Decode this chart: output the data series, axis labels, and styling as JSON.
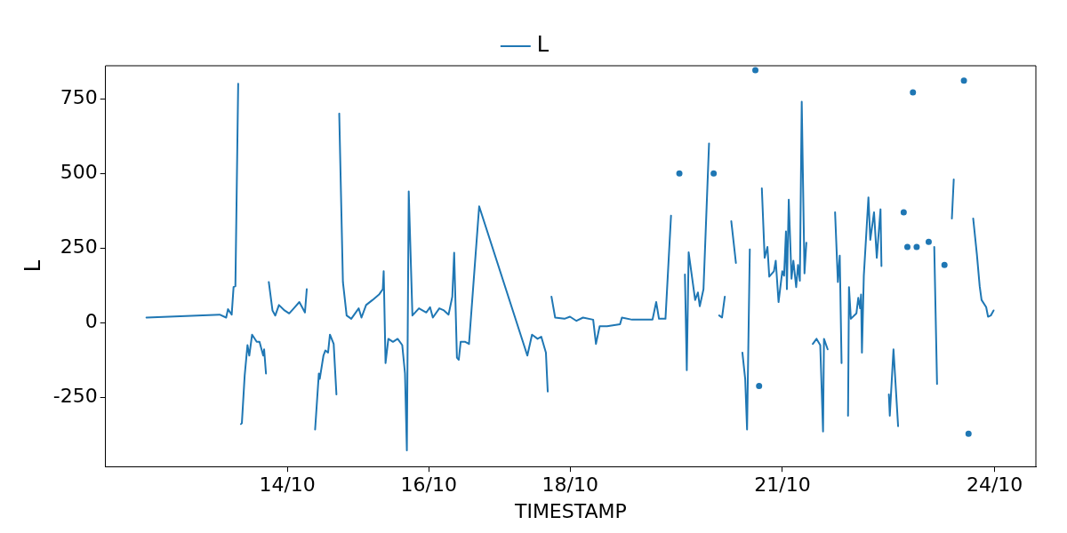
{
  "chart_data": {
    "type": "line",
    "xlabel": "TIMESTAMP",
    "ylabel": "L",
    "legend": "top",
    "marker": "none",
    "line_style": "solid",
    "xlim": [
      "--10-11T10:20",
      "--10-24T14:00"
    ],
    "xticks": [
      {
        "value": "--10-14",
        "label": "14/10"
      },
      {
        "value": "--10-16",
        "label": "16/10"
      },
      {
        "value": "--10-18",
        "label": "18/10"
      },
      {
        "value": "--10-21",
        "label": "21/10"
      },
      {
        "value": "--10-24",
        "label": "24/10"
      }
    ],
    "ylim": [
      -480,
      860
    ],
    "yticks": [
      -250,
      0,
      250,
      500,
      750
    ],
    "series": [
      {
        "name": "L",
        "color": "#1f77b4",
        "x": [
          "--10-12T00:12",
          "--10-13T01:02",
          "--10-13T03:15",
          "--10-13T03:52",
          "--10-13T05:08",
          "--10-13T05:46",
          "--10-13T06:23",
          "--10-13T07:20",
          "--10-13T07:39",
          "--10-13T08:16",
          "--10-13T08:35",
          "--10-13T09:32",
          "--10-13T10:29",
          "--10-13T11:06",
          "--10-13T12:03",
          "--10-13T13:37",
          "--10-13T14:34",
          "--10-13T15:49",
          "--10-13T16:08",
          "--10-13T16:46",
          "--10-13T17:05",
          "--10-13T17:43",
          "--10-13T18:58",
          "--10-13T19:55",
          "--10-13T21:10",
          "--10-13T23:03",
          "--10-14T00:38",
          "--10-14T02:12",
          "--10-14T04:05",
          "--10-14T05:59",
          "--10-14T06:36",
          "--10-14T07:14",
          "--10-14T07:33",
          "--10-14T09:26",
          "--10-14T10:42",
          "--10-14T11:00",
          "--10-14T12:16",
          "--10-14T12:54",
          "--10-14T13:50",
          "--10-14T14:28",
          "--10-14T15:44",
          "--10-14T16:40",
          "--10-14T16:59",
          "--10-14T17:37",
          "--10-14T18:52",
          "--10-14T20:08",
          "--10-14T21:42",
          "--10-15T00:13",
          "--10-15T01:10",
          "--10-15T02:44",
          "--10-15T04:56",
          "--10-15T07:08",
          "--10-15T08:24",
          "--10-15T08:42",
          "--10-15T09:20",
          "--10-15T10:17",
          "--10-15T11:51",
          "--10-15T13:26",
          "--10-15T15:00",
          "--10-15T15:56",
          "--10-15T16:34",
          "--10-15T17:12",
          "--10-15T18:27",
          "--10-15T20:40",
          "--10-15T23:11",
          "--10-16T00:26",
          "--10-16T01:23",
          "--10-16T03:35",
          "--10-16T05:09",
          "--10-16T06:43",
          "--10-16T07:59",
          "--10-16T08:37",
          "--10-16T09:33",
          "--10-16T10:11",
          "--10-16T10:49",
          "--10-16T12:23",
          "--10-16T13:39",
          "--10-16T17:06",
          "--10-17T09:27",
          "--10-17T11:02",
          "--10-17T12:55",
          "--10-17T14:10",
          "--10-17T15:45",
          "--10-17T16:22",
          "--10-17T17:19",
          "--10-17T17:38",
          "--10-17T18:53",
          "--10-17T22:02",
          "--10-17T23:55",
          "--10-18T02:07",
          "--10-18T04:20",
          "--10-18T07:47",
          "--10-18T08:44",
          "--10-18T09:59",
          "--10-18T12:30",
          "--10-18T16:54",
          "--10-18T17:32",
          "--10-18T21:00",
          "--10-19T03:55",
          "--10-19T05:10",
          "--10-19T06:07",
          "--10-19T08:19",
          "--10-19T10:12",
          "--10-19T11:28",
          "--10-19T12:05",
          "--10-19T13:02",
          "--10-19T13:40",
          "--10-19T14:55",
          "--10-19T15:33",
          "--10-19T16:11",
          "--10-19T18:23",
          "--10-19T19:19",
          "--10-19T19:57",
          "--10-19T21:13",
          "--10-19T23:06",
          "--10-19T23:25",
          "--10-20T00:40",
          "--10-20T00:59",
          "--10-20T01:56",
          "--10-20T02:33",
          "--10-20T03:30",
          "--10-20T04:27",
          "--10-20T05:23",
          "--10-20T06:39",
          "--10-20T08:13",
          "--10-20T08:51",
          "--10-20T10:25",
          "--10-20T11:22",
          "--10-20T12:00",
          "--10-20T12:56",
          "--10-20T14:12",
          "--10-20T14:49",
          "--10-20T15:27",
          "--10-20T16:05",
          "--10-20T16:24",
          "--10-20T17:01",
          "--10-20T17:58",
          "--10-20T18:55",
          "--10-20T19:32",
          "--10-20T21:07",
          "--10-20T21:44",
          "--10-20T22:41",
          "--10-20T23:57",
          "--10-21T00:34",
          "--10-21T01:12",
          "--10-21T01:31",
          "--10-21T02:09",
          "--10-21T03:05",
          "--10-21T03:43",
          "--10-21T04:40",
          "--10-21T05:17",
          "--10-21T05:55",
          "--10-21T06:33",
          "--10-21T07:29",
          "--10-21T08:07",
          "--10-21T08:26",
          "--10-21T10:19",
          "--10-21T11:35",
          "--10-21T12:50",
          "--10-21T13:47",
          "--10-21T14:06",
          "--10-21T15:21",
          "--10-21T15:59",
          "--10-21T16:56",
          "--10-21T17:52",
          "--10-21T18:49",
          "--10-21T19:27",
          "--10-21T20:04",
          "--10-21T20:42",
          "--10-21T21:20",
          "--10-21T22:16",
          "--10-21T22:35",
          "--10-21T23:13",
          "--10-22T01:06",
          "--10-22T01:44",
          "--10-22T02:22",
          "--10-22T02:41",
          "--10-22T02:59",
          "--10-22T03:37",
          "--10-22T05:11",
          "--10-22T05:49",
          "--10-22T07:05",
          "--10-22T08:01",
          "--10-22T09:17",
          "--10-22T09:36",
          "--10-22T10:13",
          "--10-22T10:51",
          "--10-22T12:07",
          "--10-22T12:26",
          "--10-22T13:41",
          "--10-22T15:15",
          "--10-22T15:34",
          "--10-22T17:09",
          "--10-22T17:46",
          "--10-22T18:24",
          "--10-22T19:02",
          "--10-22T19:40",
          "--10-22T20:17",
          "--10-22T20:55",
          "--10-22T21:33",
          "--10-22T23:07",
          "--10-23T00:41",
          "--10-23T01:38",
          "--10-23T02:16",
          "--10-23T02:54",
          "--10-23T03:31",
          "--10-23T04:28",
          "--10-23T05:24",
          "--10-23T06:21",
          "--10-23T06:59",
          "--10-23T07:37",
          "--10-23T08:52",
          "--10-23T09:30",
          "--10-23T10:08",
          "--10-23T10:45",
          "--10-23T12:01",
          "--10-23T13:35",
          "--10-23T14:13",
          "--10-23T15:09",
          "--10-23T16:06",
          "--10-23T16:44",
          "--10-23T17:59",
          "--10-23T18:56",
          "--10-23T19:34",
          "--10-23T21:08",
          "--10-23T21:46",
          "--10-23T22:42",
          "--10-23T23:39"
        ],
        "values": [
          18,
          28,
          18,
          46,
          28,
          120,
          123,
          800,
          null,
          -338,
          -335,
          -176,
          -74,
          -109,
          -39,
          -63,
          -63,
          -109,
          -88,
          -169,
          null,
          137,
          42,
          25,
          60,
          42,
          32,
          49,
          70,
          35,
          113,
          null,
          null,
          -356,
          -169,
          -187,
          -109,
          -92,
          -99,
          -39,
          -70,
          -239,
          null,
          700,
          137,
          25,
          14,
          49,
          18,
          60,
          77,
          95,
          113,
          173,
          -134,
          -53,
          -63,
          -53,
          -74,
          -169,
          -426,
          440,
          25,
          49,
          35,
          53,
          18,
          49,
          42,
          28,
          88,
          235,
          -116,
          -123,
          -63,
          -63,
          -70,
          390,
          -109,
          -39,
          -53,
          -46,
          -99,
          -229,
          null,
          88,
          18,
          14,
          21,
          7,
          18,
          11,
          -70,
          -11,
          -11,
          -4,
          18,
          11,
          11,
          70,
          14,
          14,
          359,
          null,
          null,
          500,
          null,
          162,
          -158,
          236,
          77,
          102,
          56,
          113,
          600,
          null,
          500,
          null,
          null,
          25,
          18,
          88,
          null,
          340,
          201,
          null,
          -99,
          -187,
          -356,
          246,
          null,
          845,
          null,
          -211,
          null,
          450,
          218,
          254,
          155,
          173,
          208,
          70,
          173,
          158,
          306,
          113,
          412,
          148,
          208,
          120,
          194,
          141,
          740,
          166,
          268,
          null,
          -70,
          -53,
          -74,
          -363,
          -53,
          -88,
          null,
          null,
          370,
          137,
          225,
          -134,
          null,
          null,
          -310,
          120,
          14,
          32,
          84,
          49,
          95,
          -99,
          158,
          420,
          278,
          370,
          218,
          380,
          190,
          null,
          null,
          -239,
          -310,
          -88,
          -345,
          null,
          370,
          null,
          254,
          null,
          null,
          771,
          null,
          254,
          null,
          null,
          271,
          null,
          null,
          254,
          -204,
          null,
          null,
          194,
          null,
          null,
          349,
          480,
          null,
          null,
          810,
          null,
          -370,
          null,
          349,
          229,
          123,
          77,
          53,
          21,
          25,
          42
        ]
      }
    ]
  }
}
